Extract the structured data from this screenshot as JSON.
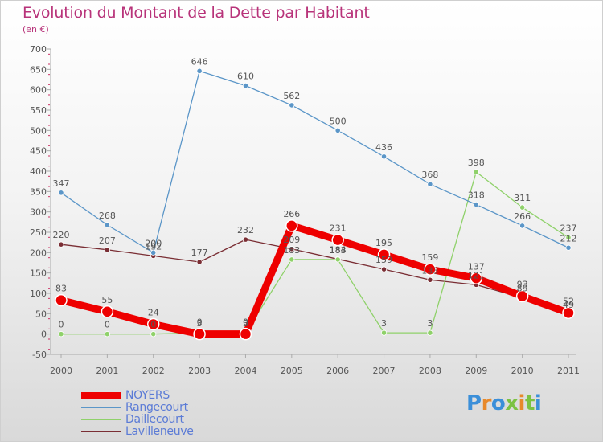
{
  "title": "Evolution du Montant de la Dette par Habitant",
  "subtitle": "(en €)",
  "brand": {
    "text": "Proxiti",
    "letter_colors": [
      "#3b8fd9",
      "#e8892a",
      "#3b8fd9",
      "#7cc242",
      "#e8892a",
      "#7cc242",
      "#3b8fd9"
    ]
  },
  "chart_data": {
    "type": "line",
    "categories": [
      "2000",
      "2001",
      "2002",
      "2003",
      "2004",
      "2005",
      "2006",
      "2007",
      "2008",
      "2009",
      "2010",
      "2011"
    ],
    "ylim": [
      -50,
      700
    ],
    "yticks": [
      -50,
      0,
      50,
      100,
      150,
      200,
      250,
      300,
      350,
      400,
      450,
      500,
      550,
      600,
      650,
      700
    ],
    "grid": false,
    "legend_position": "bottom-left",
    "series": [
      {
        "name": "Lavilleneuve",
        "color": "#7a2e34",
        "width": 1.3,
        "marker_r": 3.2,
        "values": [
          220,
          207,
          192,
          177,
          232,
          209,
          184,
          159,
          133,
          121,
          89,
          49
        ]
      },
      {
        "name": "Daillecourt",
        "color": "#8fd16a",
        "width": 1.3,
        "marker_r": 3.2,
        "values": [
          0,
          0,
          0,
          3,
          3,
          183,
          183,
          3,
          3,
          398,
          311,
          237
        ]
      },
      {
        "name": "Rangecourt",
        "color": "#5b96c8",
        "width": 1.3,
        "marker_r": 3.2,
        "values": [
          347,
          268,
          200,
          646,
          610,
          562,
          500,
          436,
          368,
          318,
          266,
          212
        ]
      },
      {
        "name": "NOYERS",
        "color": "#ee0000",
        "width": 9,
        "marker_r": 7,
        "values": [
          83,
          55,
          24,
          0,
          0,
          266,
          231,
          195,
          159,
          137,
          93,
          52
        ]
      }
    ],
    "legend_order": [
      "NOYERS",
      "Rangecourt",
      "Daillecourt",
      "Lavilleneuve"
    ]
  }
}
